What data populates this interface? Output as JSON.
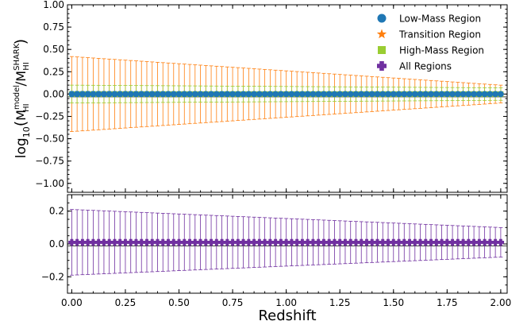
{
  "chart_data": {
    "type": "scatter",
    "x_start": 0.0,
    "x_step": 0.025,
    "x_count": 81,
    "xlabel": "Redshift",
    "ylabel_top": {
      "prefix": "log",
      "base": "10",
      "num": "M",
      "num_sub": "HI",
      "num_sup": "model",
      "den": "M",
      "den_sub": "HI",
      "den_sup": "SHARK"
    },
    "xticks": [
      "0.00",
      "0.25",
      "0.50",
      "0.75",
      "1.00",
      "1.25",
      "1.50",
      "1.75",
      "2.00"
    ],
    "xlim": [
      -0.02,
      2.03
    ],
    "top_panel": {
      "ylim": [
        -1.1,
        1.0
      ],
      "yticks": [
        "1.00",
        "0.75",
        "0.50",
        "0.25",
        "0.00",
        "−0.25",
        "−0.50",
        "−0.75",
        "−1.00"
      ],
      "legend_position": "upper right",
      "series": [
        {
          "name": "Low-Mass Region",
          "marker": "circle",
          "color": "#1f77b4",
          "y": 0.0,
          "err_start": 0.03,
          "err_end": 0.02
        },
        {
          "name": "Transition Region",
          "marker": "star",
          "color": "#ff7f0e",
          "y": 0.0,
          "err_start": 0.42,
          "err_end": 0.1
        },
        {
          "name": "High-Mass Region",
          "marker": "square",
          "color": "#9acd32",
          "y": 0.0,
          "err_start": 0.1,
          "err_end": 0.07
        },
        {
          "name": "All Regions",
          "marker": "plus",
          "color": "#7030a0",
          "legend_only": true
        }
      ]
    },
    "bottom_panel": {
      "ylim": [
        -0.3,
        0.3
      ],
      "yticks": [
        "0.2",
        "0.0",
        "−0.2"
      ],
      "series": [
        {
          "name": "All Regions",
          "marker": "plus",
          "color": "#7030a0",
          "y": 0.01,
          "err_start": 0.2,
          "err_end": 0.09
        }
      ]
    }
  }
}
